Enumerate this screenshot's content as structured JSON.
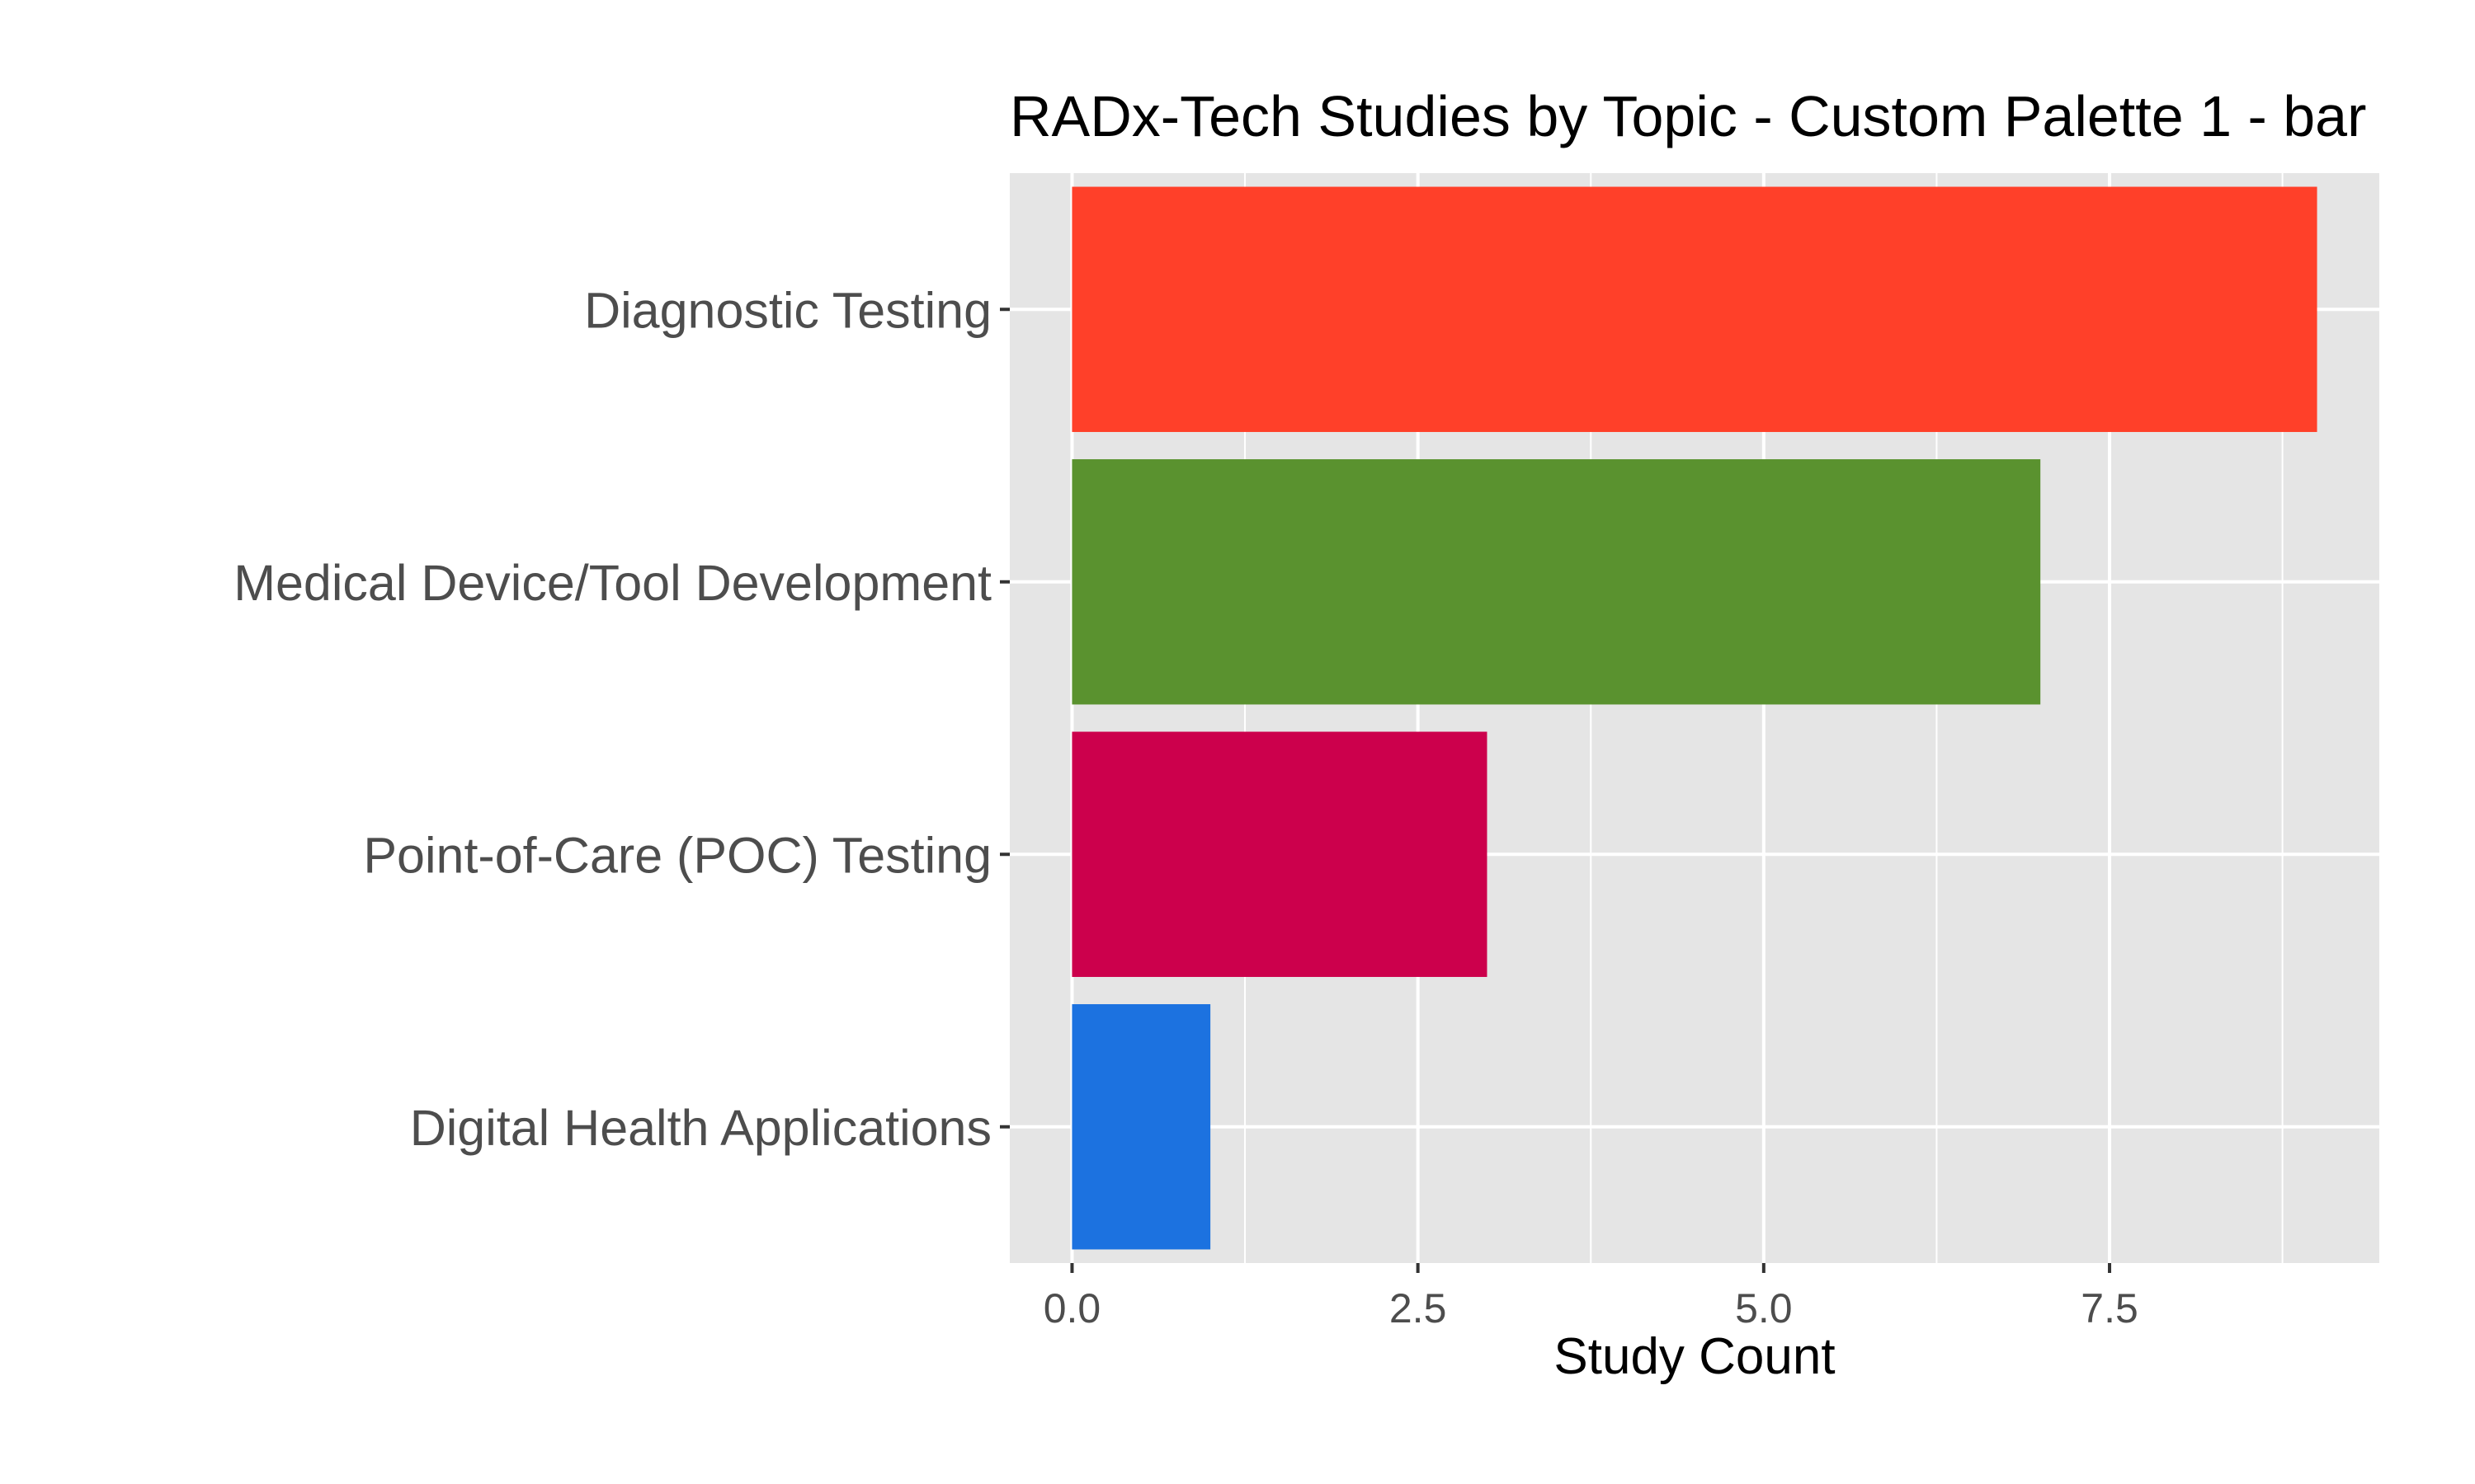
{
  "chart_data": {
    "type": "bar",
    "orientation": "horizontal",
    "title": "RADx-Tech Studies by Topic - Custom Palette 1 - bar",
    "xlabel": "Study Count",
    "ylabel": "",
    "categories": [
      "Diagnostic Testing",
      "Medical Device/Tool Development",
      "Point-of-Care (POC) Testing",
      "Digital Health Applications"
    ],
    "values": [
      9,
      7,
      3,
      1
    ],
    "colors": [
      "#FF4029",
      "#5A922F",
      "#CC004C",
      "#1C72E0"
    ],
    "xlim": [
      -0.45,
      9.45
    ],
    "x_ticks": [
      0.0,
      2.5,
      5.0,
      7.5
    ],
    "x_tick_labels": [
      "0.0",
      "2.5",
      "5.0",
      "7.5"
    ],
    "x_minor_ticks": [
      1.25,
      3.75,
      6.25,
      8.75
    ],
    "grid": true,
    "legend": "none",
    "panel_background": "#E5E5E5",
    "grid_color": "#FFFFFF"
  }
}
